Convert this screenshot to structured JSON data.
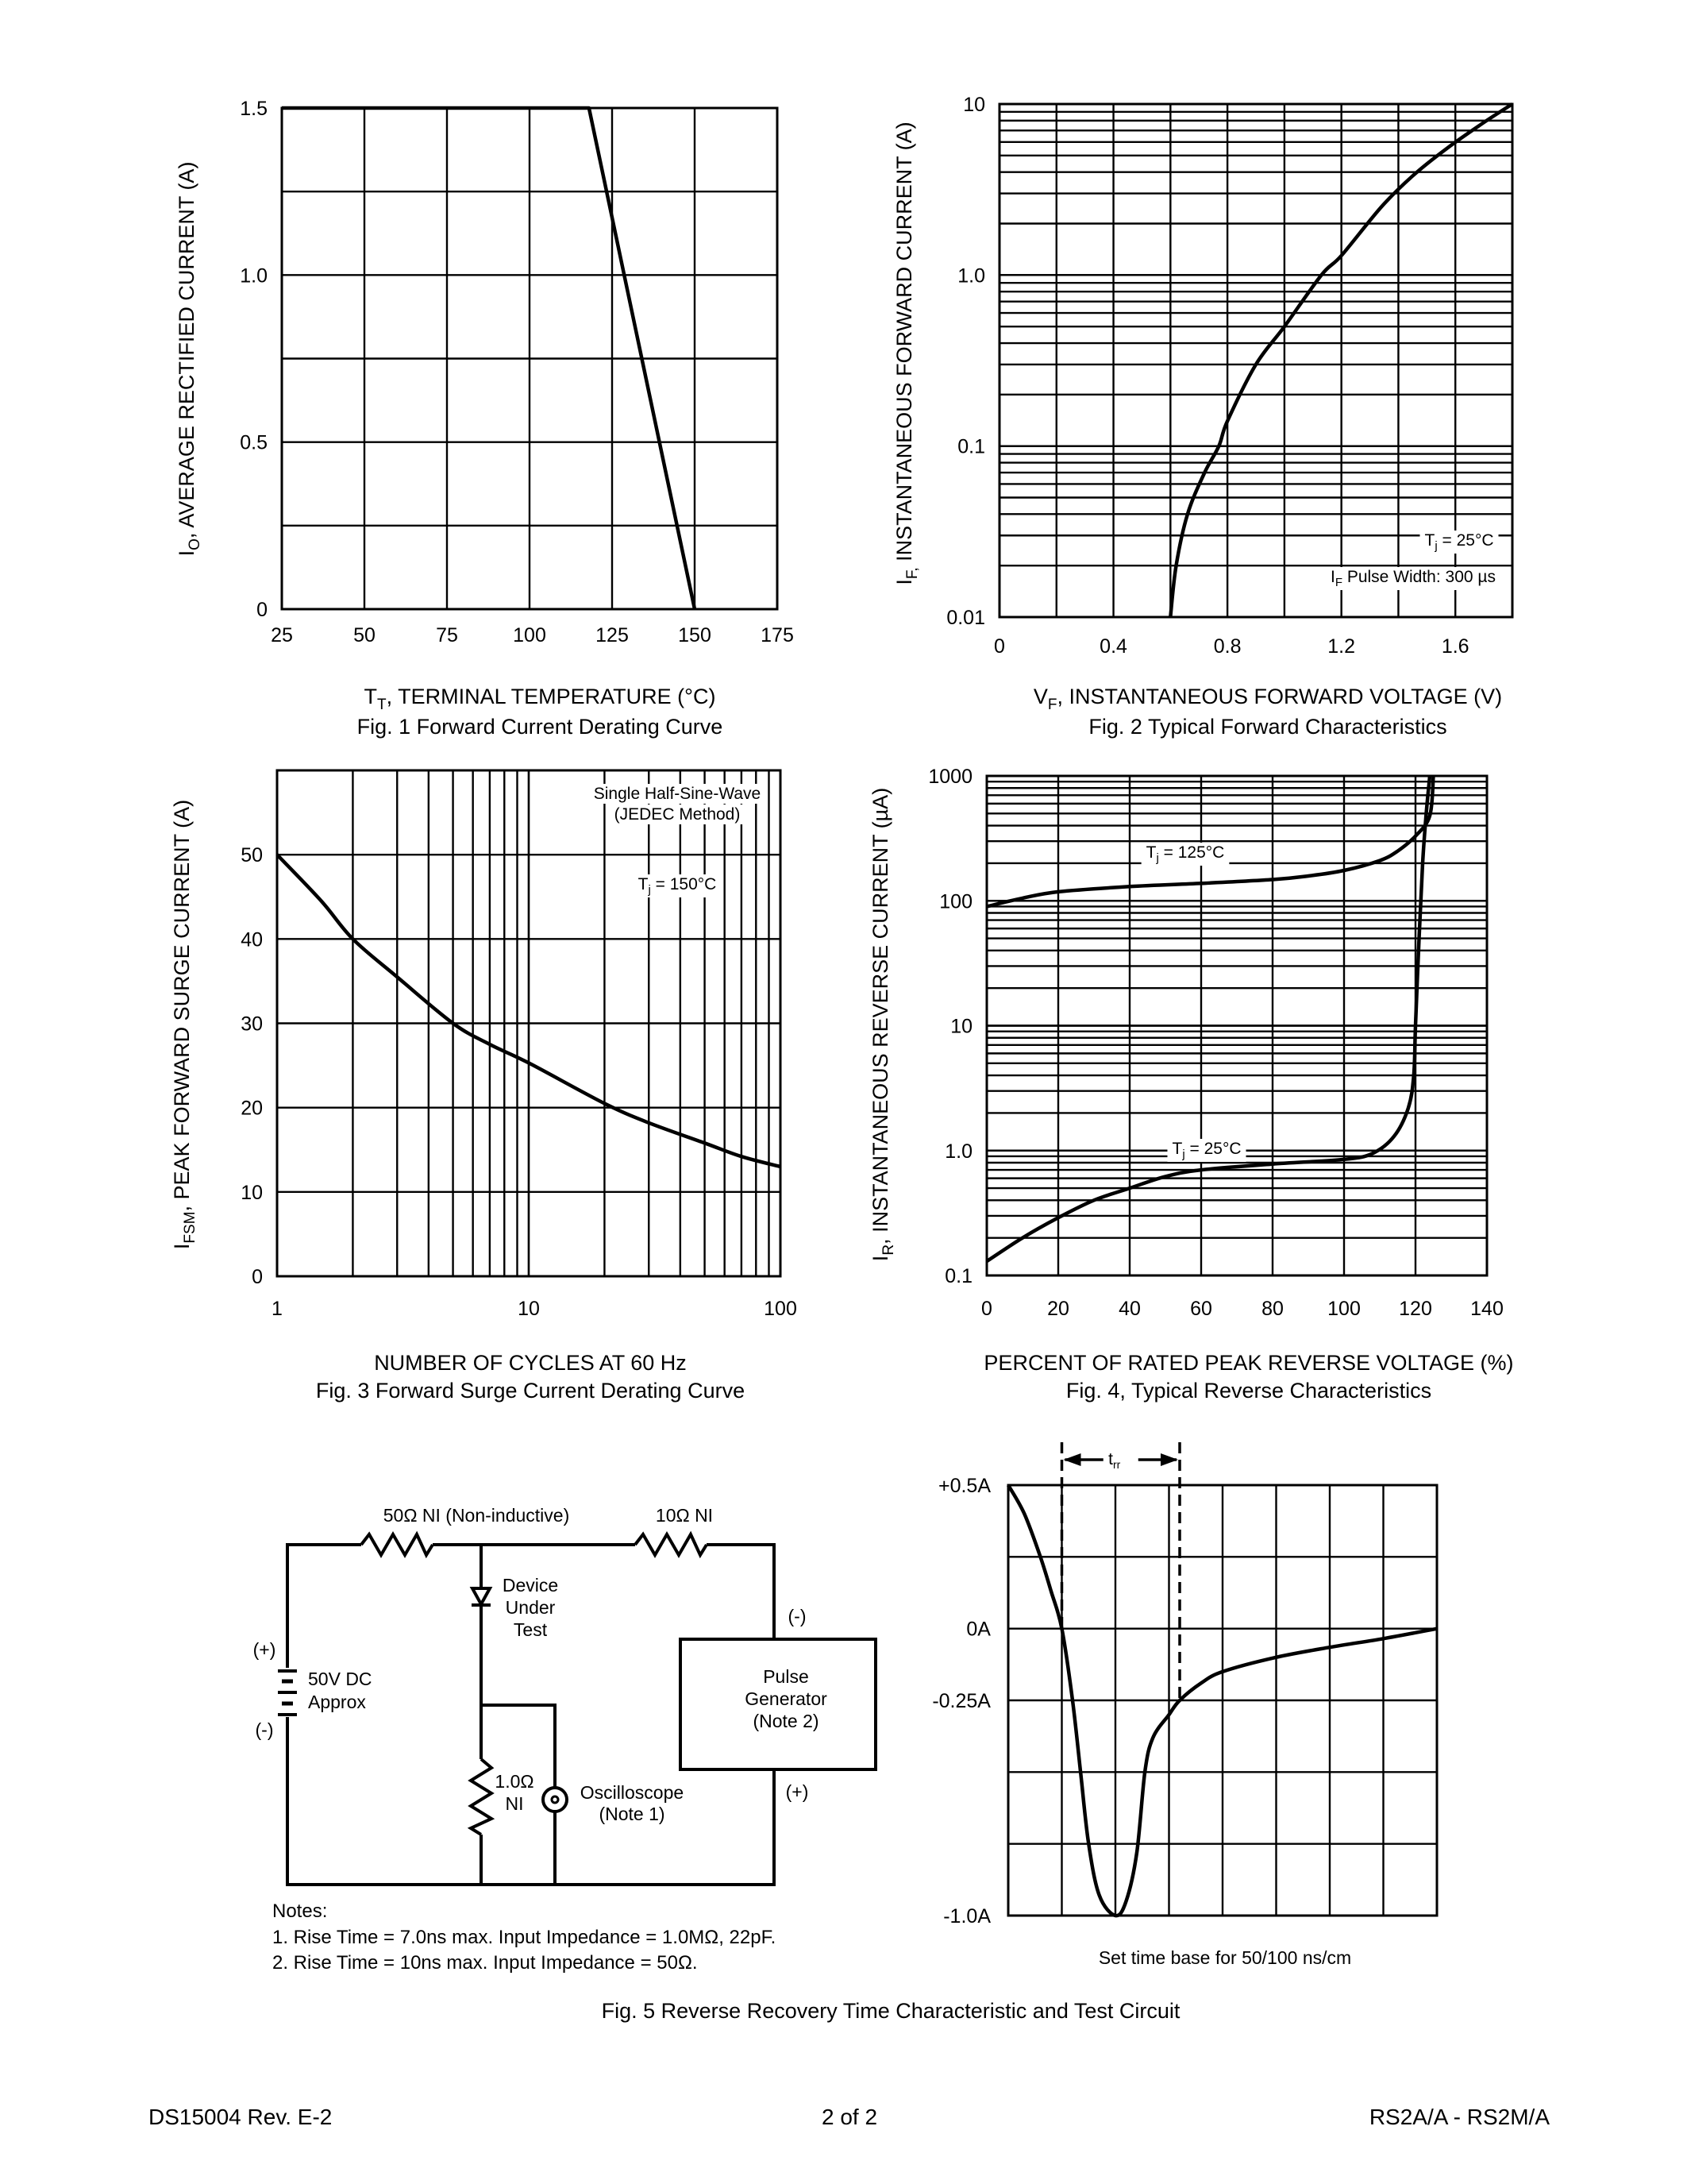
{
  "chart_data": [
    {
      "type": "line",
      "title": "Fig. 1  Forward Current Derating Curve",
      "xlabel": {
        "main": "T",
        "sub": "T",
        "rest": ", TERMINAL TEMPERATURE (°C)"
      },
      "ylabel": {
        "main": "I",
        "sub": "O",
        "rest": ", AVERAGE RECTIFIED CURRENT (A)"
      },
      "xscale": "linear",
      "yscale": "linear",
      "xlim": [
        25,
        175
      ],
      "ylim": [
        0,
        1.5
      ],
      "xticks": [
        "25",
        "50",
        "75",
        "100",
        "125",
        "150",
        "175"
      ],
      "yticks": [
        "0",
        "0.5",
        "1.0",
        "1.5"
      ],
      "grid": true,
      "series": [
        {
          "points": [
            [
              25,
              1.5
            ],
            [
              118,
              1.5
            ],
            [
              150,
              0
            ]
          ]
        }
      ],
      "annotations": []
    },
    {
      "type": "line",
      "title": "Fig. 2  Typical Forward Characteristics",
      "xlabel": {
        "main": "V",
        "sub": "F",
        "rest": ", INSTANTANEOUS FORWARD VOLTAGE (V)"
      },
      "ylabel": {
        "main": "I",
        "sub": "F,",
        "rest": " INSTANTANEOUS FORWARD CURRENT (A)"
      },
      "xscale": "linear",
      "yscale": "log",
      "xlim": [
        0,
        1.8
      ],
      "ylim": [
        0.01,
        10
      ],
      "xticks": [
        "0",
        "0.4",
        "0.8",
        "1.2",
        "1.6"
      ],
      "yticks": [
        "0.01",
        "0.1",
        "1.0",
        "10"
      ],
      "grid": true,
      "series": [
        {
          "points": [
            [
              0.6,
              0.01
            ],
            [
              0.62,
              0.02
            ],
            [
              0.66,
              0.04
            ],
            [
              0.72,
              0.07
            ],
            [
              0.77,
              0.1
            ],
            [
              0.8,
              0.14
            ],
            [
              0.9,
              0.3
            ],
            [
              1.0,
              0.5
            ],
            [
              1.13,
              1.0
            ],
            [
              1.2,
              1.3
            ],
            [
              1.34,
              2.5
            ],
            [
              1.45,
              3.8
            ],
            [
              1.57,
              5.5
            ],
            [
              1.7,
              7.8
            ],
            [
              1.8,
              10
            ]
          ]
        }
      ],
      "annotations": [
        {
          "main": "T",
          "sub": "j",
          "rest": " = 25°C"
        },
        {
          "main": "I",
          "sub": "F",
          "rest": " Pulse Width: 300 µs"
        }
      ]
    },
    {
      "type": "line",
      "title": "Fig. 3  Forward Surge Current Derating Curve",
      "xlabel": {
        "main": "NUMBER OF CYCLES AT 60 Hz",
        "sub": "",
        "rest": ""
      },
      "ylabel": {
        "main": "I",
        "sub": "FSM",
        "rest": ", PEAK FORWARD SURGE CURRENT (A)"
      },
      "xscale": "log",
      "yscale": "linear",
      "xlim": [
        1,
        100
      ],
      "ylim": [
        0,
        60
      ],
      "xticks": [
        "1",
        "10",
        "100"
      ],
      "yticks": [
        "0",
        "10",
        "20",
        "30",
        "40",
        "50"
      ],
      "grid": true,
      "series": [
        {
          "points": [
            [
              1,
              50
            ],
            [
              1.5,
              44.5
            ],
            [
              2,
              40
            ],
            [
              3,
              35.5
            ],
            [
              5,
              30
            ],
            [
              7,
              27.5
            ],
            [
              10,
              25.3
            ],
            [
              20,
              20.5
            ],
            [
              30,
              18.2
            ],
            [
              50,
              15.8
            ],
            [
              70,
              14.2
            ],
            [
              100,
              13
            ]
          ]
        }
      ],
      "annotations": [
        {
          "main": "Single Half-Sine-Wave",
          "sub": "",
          "rest": ""
        },
        {
          "main": "(JEDEC Method)",
          "sub": "",
          "rest": ""
        },
        {
          "main": "T",
          "sub": "j",
          "rest": " = 150°C"
        }
      ]
    },
    {
      "type": "line",
      "title": "Fig. 4,  Typical Reverse Characteristics",
      "xlabel": {
        "main": "PERCENT OF RATED PEAK REVERSE VOLTAGE (%)",
        "sub": "",
        "rest": ""
      },
      "ylabel": {
        "main": "I",
        "sub": "R",
        "rest": ", INSTANTANEOUS REVERSE CURRENT (µA)"
      },
      "xscale": "linear",
      "yscale": "log",
      "xlim": [
        0,
        140
      ],
      "ylim": [
        0.1,
        1000
      ],
      "xticks": [
        "0",
        "20",
        "40",
        "60",
        "80",
        "100",
        "120",
        "140"
      ],
      "yticks": [
        "0.1",
        "1.0",
        "10",
        "100",
        "1000"
      ],
      "grid": true,
      "series": [
        {
          "name": "Tj = 125°C",
          "points": [
            [
              0,
              90
            ],
            [
              10,
              105
            ],
            [
              20,
              118
            ],
            [
              40,
              130
            ],
            [
              60,
              138
            ],
            [
              80,
              148
            ],
            [
              90,
              158
            ],
            [
              100,
              175
            ],
            [
              110,
              210
            ],
            [
              115,
              250
            ],
            [
              120,
              330
            ],
            [
              124,
              480
            ],
            [
              125,
              1000
            ]
          ]
        },
        {
          "name": "Tj = 25°C",
          "points": [
            [
              0,
              0.13
            ],
            [
              10,
              0.2
            ],
            [
              20,
              0.29
            ],
            [
              30,
              0.4
            ],
            [
              40,
              0.5
            ],
            [
              50,
              0.62
            ],
            [
              60,
              0.7
            ],
            [
              80,
              0.78
            ],
            [
              100,
              0.85
            ],
            [
              108,
              0.95
            ],
            [
              114,
              1.3
            ],
            [
              118,
              2.2
            ],
            [
              119.5,
              4
            ],
            [
              120,
              10
            ],
            [
              121,
              50
            ],
            [
              122,
              200
            ],
            [
              123,
              500
            ],
            [
              124,
              1000
            ]
          ]
        }
      ],
      "annotations": [
        {
          "main": "T",
          "sub": "j",
          "rest": " = 125°C"
        },
        {
          "main": "T",
          "sub": "j",
          "rest": " = 25°C"
        }
      ]
    },
    {
      "type": "line",
      "title": "Fig. 5  Reverse Recovery Time Characteristic and Test Circuit",
      "xlabel": {
        "main": "Set time base for 50/100 ns/cm",
        "sub": "",
        "rest": ""
      },
      "ylabel": {
        "main": "",
        "sub": "",
        "rest": ""
      },
      "xscale": "linear",
      "yscale": "linear",
      "xlim": [
        0,
        8
      ],
      "ylim": [
        -1.0,
        0.5
      ],
      "xticks": [],
      "yticks": [
        "+0.5A",
        "0A",
        "-0.25A",
        "-1.0A"
      ],
      "grid": true,
      "series": [
        {
          "points": [
            [
              0,
              0.5
            ],
            [
              0.3,
              0.4
            ],
            [
              0.6,
              0.25
            ],
            [
              0.8,
              0.13
            ],
            [
              1,
              0
            ],
            [
              1.2,
              -0.25
            ],
            [
              1.35,
              -0.5
            ],
            [
              1.5,
              -0.75
            ],
            [
              1.7,
              -0.93
            ],
            [
              2,
              -1.0
            ],
            [
              2.2,
              -0.95
            ],
            [
              2.4,
              -0.78
            ],
            [
              2.55,
              -0.5
            ],
            [
              2.7,
              -0.38
            ],
            [
              3.0,
              -0.3
            ],
            [
              3.2,
              -0.25
            ],
            [
              3.6,
              -0.19
            ],
            [
              4,
              -0.15
            ],
            [
              5,
              -0.1
            ],
            [
              6,
              -0.065
            ],
            [
              7,
              -0.035
            ],
            [
              8,
              0
            ]
          ]
        }
      ],
      "trr": {
        "main": "t",
        "sub": "rr",
        "start_x": 1,
        "end_x": 3.2
      },
      "annotations": []
    }
  ],
  "circuit": {
    "r50": "50Ω NI (Non-inductive)",
    "r10": "10Ω NI",
    "dut": [
      "Device",
      "Under",
      "Test"
    ],
    "battery": [
      "50V DC",
      "Approx"
    ],
    "batt_plus": "(+)",
    "batt_minus": "(-)",
    "pulse_gen": [
      "Pulse",
      "Generator",
      "(Note 2)"
    ],
    "gen_minus": "(-)",
    "gen_plus": "(+)",
    "r1": [
      "1.0Ω",
      "NI"
    ],
    "scope": [
      "Oscilloscope",
      "(Note 1)"
    ],
    "notes": [
      "Notes:",
      "1. Rise Time = 7.0ns max. Input Impedance = 1.0MΩ, 22pF.",
      "2. Rise Time = 10ns max. Input Impedance = 50Ω."
    ]
  },
  "footer": {
    "doc_id": "DS15004 Rev. E-2",
    "page": "2 of 2",
    "part": "RS2A/A - RS2M/A"
  }
}
